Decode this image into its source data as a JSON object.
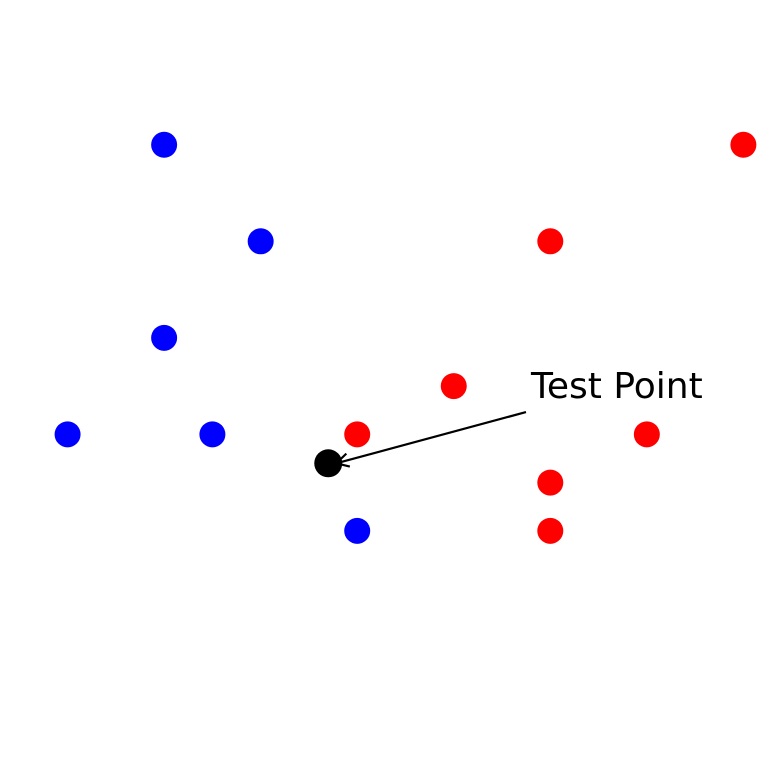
{
  "chart_data": {
    "type": "scatter",
    "title": "",
    "xlabel": "",
    "ylabel": "",
    "axes_visible": false,
    "grid": false,
    "xlim": [
      -0.7,
      7.4
    ],
    "ylim": [
      -2.55,
      5.5
    ],
    "series": [
      {
        "color": "#0000ff",
        "points": [
          {
            "x": 1,
            "y": 4
          },
          {
            "x": 2,
            "y": 3
          },
          {
            "x": 1,
            "y": 2
          },
          {
            "x": 0,
            "y": 1
          },
          {
            "x": 1.5,
            "y": 1
          },
          {
            "x": 3,
            "y": 0
          }
        ]
      },
      {
        "color": "#ff0000",
        "points": [
          {
            "x": 7,
            "y": 4
          },
          {
            "x": 5,
            "y": 3
          },
          {
            "x": 4,
            "y": 1.5
          },
          {
            "x": 3,
            "y": 1
          },
          {
            "x": 6,
            "y": 1
          },
          {
            "x": 5,
            "y": 0.5
          },
          {
            "x": 5,
            "y": 0
          }
        ]
      }
    ],
    "test_point": {
      "x": 2.7,
      "y": 0.7,
      "color": "#000000"
    },
    "annotation": {
      "text": "Test Point",
      "xytext": {
        "x": 4.8,
        "y": 1.5
      },
      "target": {
        "x": 2.7,
        "y": 0.7
      }
    }
  }
}
